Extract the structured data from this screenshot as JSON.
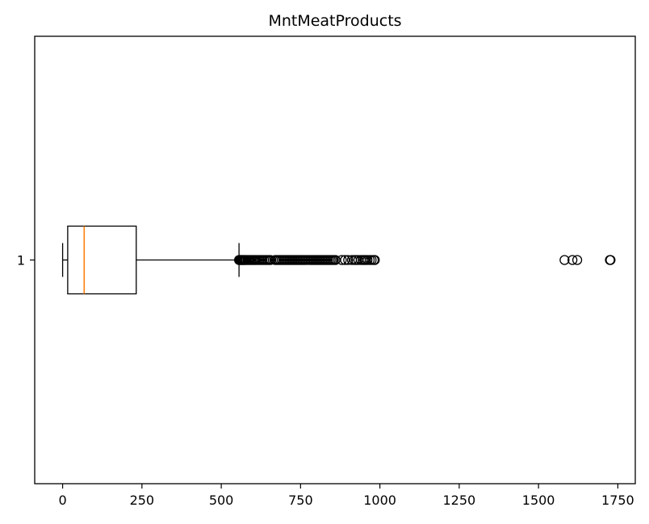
{
  "chart_data": {
    "type": "boxplot",
    "orientation": "horizontal",
    "title": "MntMeatProducts",
    "xlabel": "",
    "ylabel": "",
    "xlim": [
      -88,
      1805
    ],
    "x_ticks": [
      0,
      250,
      500,
      750,
      1000,
      1250,
      1500,
      1750
    ],
    "x_tick_labels": [
      "0",
      "250",
      "500",
      "750",
      "1000",
      "1250",
      "1500",
      "1750"
    ],
    "y_tick_labels": [
      "1"
    ],
    "grid": false,
    "boxes": [
      {
        "category": "1",
        "whisker_low": 0,
        "q1": 16,
        "median": 68,
        "q3": 232,
        "whisker_high": 556,
        "outliers": [
          556,
          559,
          561,
          563,
          565,
          568,
          570,
          573,
          575,
          578,
          582,
          586,
          590,
          594,
          598,
          602,
          606,
          610,
          615,
          620,
          625,
          630,
          635,
          640,
          645,
          650,
          655,
          670,
          675,
          680,
          685,
          690,
          695,
          700,
          705,
          710,
          715,
          720,
          725,
          730,
          735,
          740,
          745,
          750,
          755,
          760,
          765,
          770,
          775,
          780,
          785,
          790,
          795,
          800,
          805,
          810,
          815,
          820,
          825,
          830,
          835,
          840,
          845,
          850,
          855,
          860,
          880,
          890,
          900,
          912,
          920,
          925,
          932,
          940,
          946,
          951,
          955,
          961,
          968,
          974,
          981,
          984,
          1582,
          1607,
          1622,
          1725,
          1727
        ]
      }
    ],
    "colors": {
      "box": "#000000",
      "median": "#ff7f0e",
      "outlier": "#000000"
    }
  }
}
